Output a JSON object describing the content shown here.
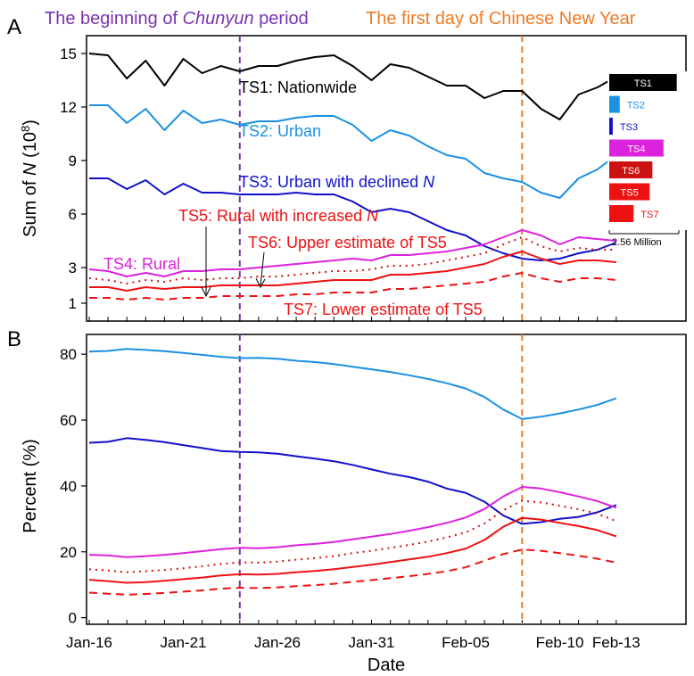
{
  "panel_a_letter": "A",
  "panel_b_letter": "B",
  "header": {
    "chunyun_prefix": "The beginning of ",
    "chunyun_italic": "Chunyun",
    "chunyun_suffix": " period",
    "new_year": "The first day of Chinese New Year",
    "chunyun_color": "#7a33b0",
    "new_year_color": "#ee7a22"
  },
  "colors": {
    "TS1": "#000000",
    "TS2": "#1a90e0",
    "TS3": "#1010cc",
    "TS4": "#dd22dd",
    "TS5": "#ee1111",
    "TS6": "#cc1111",
    "TS7": "#ee1111"
  },
  "legend_box": {
    "items": [
      "TS1",
      "TS2",
      "TS3",
      "TS4",
      "TS6",
      "TS5",
      "TS7"
    ],
    "bar_fractions": [
      0.97,
      0.15,
      0.05,
      0.78,
      0.62,
      0.58,
      0.35
    ],
    "scale_label": "2.56 Million"
  },
  "annotations": {
    "ts1": "TS1: Nationwide",
    "ts2": "TS2: Urban",
    "ts3_prefix": "TS3: Urban with declined ",
    "ts3_italic": "N",
    "ts4": "TS4: Rural",
    "ts5_prefix": "TS5: Rural with increased ",
    "ts5_italic": "N",
    "ts6": "TS6: Upper estimate of TS5",
    "ts7": "TS7: Lower estimate of TS5"
  },
  "chart_data": [
    {
      "type": "line",
      "panel": "A",
      "ylabel_prefix": "Sum of ",
      "ylabel_italic": "N",
      "ylabel_suffix": " (10",
      "ylabel_sup": "8",
      "ylabel_close": ")",
      "xlabel": "",
      "x": [
        "Jan-16",
        "Jan-17",
        "Jan-18",
        "Jan-19",
        "Jan-20",
        "Jan-21",
        "Jan-22",
        "Jan-23",
        "Jan-24",
        "Jan-25",
        "Jan-26",
        "Jan-27",
        "Jan-28",
        "Jan-29",
        "Jan-30",
        "Jan-31",
        "Feb-01",
        "Feb-02",
        "Feb-03",
        "Feb-04",
        "Feb-05",
        "Feb-06",
        "Feb-07",
        "Feb-08",
        "Feb-09",
        "Feb-10",
        "Feb-11",
        "Feb-12",
        "Feb-13"
      ],
      "yticks": [
        1,
        3,
        6,
        9,
        12,
        15
      ],
      "ylim": [
        0,
        16
      ],
      "series": [
        {
          "name": "TS1",
          "values": [
            15.0,
            14.9,
            13.6,
            14.6,
            13.2,
            14.7,
            13.9,
            14.3,
            14.0,
            14.3,
            14.3,
            14.6,
            14.8,
            14.9,
            14.3,
            13.5,
            14.4,
            14.2,
            13.7,
            13.2,
            13.2,
            12.5,
            12.9,
            12.9,
            11.9,
            11.3,
            12.7,
            13.1,
            13.7
          ],
          "style": "solid"
        },
        {
          "name": "TS2",
          "values": [
            12.1,
            12.1,
            11.1,
            11.9,
            10.7,
            11.8,
            11.1,
            11.3,
            11.0,
            11.2,
            11.2,
            11.4,
            11.5,
            11.5,
            11.0,
            10.1,
            10.7,
            10.4,
            9.8,
            9.3,
            9.1,
            8.3,
            8.0,
            7.8,
            7.2,
            6.9,
            8.0,
            8.5,
            9.3
          ],
          "style": "solid"
        },
        {
          "name": "TS3",
          "values": [
            8.0,
            8.0,
            7.4,
            7.9,
            7.1,
            7.7,
            7.2,
            7.2,
            7.1,
            7.1,
            7.1,
            7.2,
            7.1,
            7.1,
            6.7,
            6.1,
            6.3,
            6.1,
            5.6,
            5.1,
            4.8,
            4.2,
            3.8,
            3.5,
            3.4,
            3.5,
            3.8,
            4.0,
            4.4
          ],
          "style": "solid"
        },
        {
          "name": "TS4",
          "values": [
            2.9,
            2.8,
            2.5,
            2.7,
            2.5,
            2.8,
            2.8,
            2.9,
            2.9,
            3.0,
            3.1,
            3.2,
            3.3,
            3.4,
            3.5,
            3.4,
            3.7,
            3.7,
            3.8,
            3.9,
            4.1,
            4.3,
            4.7,
            5.1,
            4.8,
            4.3,
            4.7,
            4.6,
            4.5
          ],
          "style": "solid"
        },
        {
          "name": "TS5",
          "values": [
            1.9,
            1.9,
            1.7,
            1.9,
            1.8,
            1.9,
            1.9,
            2.0,
            2.0,
            2.0,
            2.0,
            2.1,
            2.2,
            2.3,
            2.3,
            2.3,
            2.6,
            2.6,
            2.7,
            2.8,
            3.0,
            3.2,
            3.6,
            3.9,
            3.5,
            3.2,
            3.4,
            3.4,
            3.3
          ],
          "style": "solid"
        },
        {
          "name": "TS6",
          "values": [
            2.4,
            2.3,
            2.1,
            2.3,
            2.2,
            2.4,
            2.3,
            2.4,
            2.4,
            2.5,
            2.5,
            2.6,
            2.7,
            2.8,
            2.8,
            2.9,
            3.1,
            3.1,
            3.2,
            3.4,
            3.6,
            3.8,
            4.3,
            4.7,
            4.2,
            3.9,
            4.1,
            4.0,
            4.0
          ],
          "style": "dotted"
        },
        {
          "name": "TS7",
          "values": [
            1.3,
            1.3,
            1.2,
            1.3,
            1.2,
            1.3,
            1.3,
            1.4,
            1.4,
            1.4,
            1.4,
            1.5,
            1.5,
            1.6,
            1.6,
            1.6,
            1.8,
            1.8,
            1.9,
            2.0,
            2.1,
            2.2,
            2.5,
            2.7,
            2.4,
            2.2,
            2.4,
            2.4,
            2.3
          ],
          "style": "dashed"
        }
      ],
      "vlines": [
        {
          "x": "Jan-24",
          "color": "#7a33b0"
        },
        {
          "x": "Feb-08",
          "color": "#ee7a22"
        }
      ]
    },
    {
      "type": "line",
      "panel": "B",
      "ylabel": "Percent (%)",
      "xlabel": "Date",
      "x": [
        "Jan-16",
        "Jan-17",
        "Jan-18",
        "Jan-19",
        "Jan-20",
        "Jan-21",
        "Jan-22",
        "Jan-23",
        "Jan-24",
        "Jan-25",
        "Jan-26",
        "Jan-27",
        "Jan-28",
        "Jan-29",
        "Jan-30",
        "Jan-31",
        "Feb-01",
        "Feb-02",
        "Feb-03",
        "Feb-04",
        "Feb-05",
        "Feb-06",
        "Feb-07",
        "Feb-08",
        "Feb-09",
        "Feb-10",
        "Feb-11",
        "Feb-12",
        "Feb-13"
      ],
      "xtick_labels": [
        "Jan-16",
        "Jan-21",
        "Jan-26",
        "Jan-31",
        "Feb-05",
        "Feb-10",
        "Feb-13"
      ],
      "yticks": [
        0,
        20,
        40,
        60,
        80
      ],
      "ylim": [
        -2,
        86
      ],
      "series": [
        {
          "name": "TS2",
          "values": [
            80.8,
            81.0,
            81.6,
            81.3,
            80.9,
            80.4,
            79.8,
            79.2,
            78.8,
            78.9,
            78.6,
            78.0,
            77.6,
            77.0,
            76.2,
            75.4,
            74.6,
            73.6,
            72.5,
            71.2,
            69.6,
            67.0,
            63.2,
            60.3,
            61.0,
            62.0,
            63.2,
            64.6,
            66.6
          ],
          "style": "solid"
        },
        {
          "name": "TS3",
          "values": [
            53.1,
            53.4,
            54.5,
            54.0,
            53.3,
            52.4,
            51.5,
            50.6,
            50.3,
            50.2,
            49.8,
            49.0,
            48.3,
            47.5,
            46.4,
            45.0,
            43.7,
            42.7,
            41.3,
            39.2,
            37.9,
            35.2,
            31.0,
            28.5,
            29.0,
            30.0,
            30.6,
            32.0,
            34.2
          ],
          "style": "solid"
        },
        {
          "name": "TS4",
          "values": [
            19.1,
            18.9,
            18.4,
            18.7,
            19.1,
            19.6,
            20.2,
            20.8,
            21.2,
            21.1,
            21.4,
            22.0,
            22.4,
            23.0,
            23.8,
            24.6,
            25.4,
            26.4,
            27.5,
            28.8,
            30.4,
            33.0,
            36.8,
            39.7,
            39.2,
            38.1,
            36.8,
            35.4,
            33.4
          ],
          "style": "solid"
        },
        {
          "name": "TS5",
          "values": [
            11.5,
            11.1,
            10.6,
            10.8,
            11.2,
            11.7,
            12.2,
            12.8,
            13.2,
            13.1,
            13.3,
            13.8,
            14.2,
            14.7,
            15.4,
            16.1,
            16.9,
            17.7,
            18.5,
            19.6,
            21.0,
            23.6,
            27.6,
            30.3,
            29.8,
            28.8,
            27.8,
            26.6,
            24.7
          ],
          "style": "solid"
        },
        {
          "name": "TS6",
          "values": [
            14.7,
            14.3,
            13.8,
            14.1,
            14.5,
            15.0,
            15.6,
            16.3,
            16.8,
            16.7,
            17.0,
            17.6,
            18.1,
            18.7,
            19.6,
            20.3,
            21.2,
            22.1,
            23.1,
            24.4,
            25.9,
            28.6,
            32.6,
            35.5,
            35.0,
            34.0,
            32.9,
            31.6,
            29.3
          ],
          "style": "dotted"
        },
        {
          "name": "TS7",
          "values": [
            7.6,
            7.3,
            7.0,
            7.2,
            7.5,
            7.9,
            8.3,
            8.8,
            9.1,
            9.0,
            9.2,
            9.6,
            9.9,
            10.3,
            10.9,
            11.4,
            12.0,
            12.6,
            13.3,
            14.1,
            15.3,
            17.3,
            19.3,
            20.7,
            20.3,
            19.6,
            18.8,
            17.9,
            16.7
          ],
          "style": "dashed"
        }
      ],
      "vlines": [
        {
          "x": "Jan-24",
          "color": "#7a33b0"
        },
        {
          "x": "Feb-08",
          "color": "#ee7a22"
        }
      ]
    }
  ]
}
